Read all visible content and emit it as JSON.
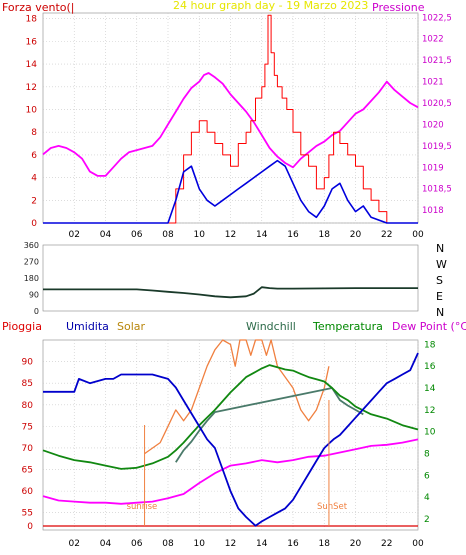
{
  "chart_data": [
    {
      "type": "line",
      "title": "24 hour graph day - 19 Marzo 2023",
      "left_label": "Forza vento(|",
      "right_label": "Pressione",
      "x_ticks": [
        "02",
        "04",
        "06",
        "08",
        "10",
        "12",
        "14",
        "16",
        "18",
        "20",
        "22",
        "00"
      ],
      "xlim": [
        0,
        24
      ],
      "y_left_ticks": [
        "0",
        "2",
        "4",
        "6",
        "8",
        "10",
        "12",
        "14",
        "16",
        "18"
      ],
      "ylim_left": [
        0,
        18.5
      ],
      "y_right_ticks": [
        "1018",
        "1018,5",
        "1019",
        "1019,5",
        "1020",
        "1020,5",
        "1021",
        "1021,5",
        "1022",
        "1022,5"
      ],
      "ylim_right": [
        1017.7,
        1022.6
      ],
      "grid": true,
      "colors": {
        "gust": "#ff0000",
        "wind": "#0000dd",
        "pressure": "#ff00ff",
        "left_axis": "#cc0000",
        "right_axis": "#cc00cc",
        "title": "#e6e600"
      },
      "series": [
        {
          "role": "pressure",
          "axis": "right",
          "x": [
            0,
            0.5,
            1,
            1.5,
            2,
            2.5,
            3,
            3.5,
            4,
            4.5,
            5,
            5.5,
            6,
            6.5,
            7,
            7.5,
            8,
            8.5,
            9,
            9.5,
            10,
            10.3,
            10.6,
            11,
            11.5,
            12,
            12.5,
            13,
            13.5,
            14,
            14.5,
            15,
            15.5,
            16,
            16.5,
            17,
            17.5,
            18,
            18.5,
            19,
            19.5,
            20,
            20.5,
            21,
            21.5,
            22,
            22.5,
            23,
            23.5,
            24
          ],
          "y": [
            1019.3,
            1019.45,
            1019.5,
            1019.45,
            1019.35,
            1019.2,
            1018.9,
            1018.8,
            1018.8,
            1019.0,
            1019.2,
            1019.35,
            1019.4,
            1019.45,
            1019.5,
            1019.7,
            1020.0,
            1020.3,
            1020.6,
            1020.85,
            1021.0,
            1021.15,
            1021.2,
            1021.1,
            1020.95,
            1020.7,
            1020.5,
            1020.3,
            1020.05,
            1019.75,
            1019.45,
            1019.25,
            1019.1,
            1019.0,
            1019.2,
            1019.35,
            1019.5,
            1019.6,
            1019.75,
            1019.85,
            1020.05,
            1020.25,
            1020.35,
            1020.55,
            1020.75,
            1021.0,
            1020.8,
            1020.65,
            1020.5,
            1020.4
          ]
        },
        {
          "role": "gust",
          "axis": "left",
          "x": [
            0,
            1,
            2,
            3,
            4,
            5,
            6,
            6.5,
            7,
            7.5,
            8,
            8.5,
            9,
            9.5,
            10,
            10.5,
            11,
            11.5,
            12,
            12.5,
            13,
            13.3,
            13.6,
            14,
            14.2,
            14.4,
            14.6,
            14.8,
            15,
            15.3,
            15.6,
            16,
            16.5,
            17,
            17.5,
            18,
            18.3,
            18.6,
            19,
            19.5,
            20,
            20.5,
            21,
            21.5,
            22,
            23,
            24
          ],
          "y": [
            0,
            0,
            0,
            0,
            0,
            0,
            0,
            0,
            0,
            0,
            0,
            3,
            6,
            8,
            9,
            8,
            7,
            6,
            5,
            7,
            8,
            9,
            11,
            12,
            14,
            18.3,
            15,
            13,
            12,
            11,
            10,
            8,
            6,
            5,
            3,
            4,
            6,
            8,
            7,
            6,
            5,
            3,
            2,
            1,
            0,
            0,
            0
          ]
        },
        {
          "role": "wind",
          "axis": "left",
          "x": [
            0,
            1,
            2,
            3,
            4,
            5,
            6,
            6.5,
            7,
            7.5,
            8,
            8.5,
            9,
            9.5,
            10,
            10.5,
            11,
            11.5,
            12,
            12.5,
            13,
            13.5,
            14,
            14.5,
            15,
            15.5,
            16,
            16.5,
            17,
            17.5,
            18,
            18.5,
            19,
            19.5,
            20,
            20.5,
            21,
            22,
            23,
            24
          ],
          "y": [
            0,
            0,
            0,
            0,
            0,
            0,
            0,
            0,
            0,
            0,
            0,
            2,
            4.5,
            5,
            3,
            2,
            1.5,
            2,
            2.5,
            3,
            3.5,
            4,
            4.5,
            5,
            5.5,
            5,
            3.5,
            2,
            1,
            0.5,
            1.5,
            3,
            3.5,
            2,
            1,
            1.5,
            0.5,
            0,
            0,
            0
          ]
        }
      ]
    },
    {
      "type": "line",
      "x_ticks": [
        "02",
        "04",
        "06",
        "08",
        "10",
        "12",
        "14",
        "16",
        "18",
        "20",
        "22",
        "00"
      ],
      "xlim": [
        0,
        24
      ],
      "y_left_ticks": [
        "0",
        "90",
        "180",
        "270",
        "360"
      ],
      "ylim": [
        0,
        360
      ],
      "y_right_ticks": [
        "N",
        "W",
        "S",
        "E",
        "N"
      ],
      "colors": {
        "direction": "#1a3a2a",
        "axis": "#222222"
      },
      "series": [
        {
          "role": "direction",
          "x": [
            0,
            2,
            4,
            6,
            7,
            8,
            9,
            10,
            11,
            12,
            13,
            13.5,
            14,
            14.5,
            15,
            16,
            18,
            20,
            22,
            24
          ],
          "y": [
            118,
            118,
            118,
            118,
            112,
            105,
            98,
            90,
            80,
            75,
            80,
            95,
            130,
            125,
            122,
            122,
            123,
            125,
            125,
            125
          ]
        }
      ]
    },
    {
      "type": "line",
      "legend": [
        "Pioggia",
        "Umidita",
        "Solar",
        "Windchill",
        "Temperatura",
        "Dew Point (°C)"
      ],
      "legend_colors": [
        "#dd0000",
        "#0000aa",
        "#b8860b",
        "#2e6b4a",
        "#008800",
        "#cc00cc"
      ],
      "x_ticks": [
        "02",
        "04",
        "06",
        "08",
        "10",
        "12",
        "14",
        "16",
        "18",
        "20",
        "22",
        "00"
      ],
      "xlim": [
        0,
        24
      ],
      "y_left_ticks": [
        "0",
        "55",
        "60",
        "65",
        "70",
        "75",
        "80",
        "85",
        "90"
      ],
      "ylim_humidity": [
        51,
        95
      ],
      "y_right_ticks": [
        "2",
        "4",
        "6",
        "8",
        "10",
        "12",
        "14",
        "16",
        "18"
      ],
      "ylim_temperature": [
        1,
        18.4
      ],
      "annotations": [
        "sunrise",
        "SunSet"
      ],
      "grid": true,
      "colors": {
        "humidity": "#0000cc",
        "temperature": "#118811",
        "dewpoint": "#ff00ff",
        "solar": "#f08040",
        "windchill": "#4a7a6a",
        "rain": "#dd0000",
        "left_axis": "#cc0000",
        "right_axis": "#008800"
      },
      "series": [
        {
          "role": "humidity",
          "axis": "left",
          "x": [
            0,
            1,
            2,
            2.3,
            3,
            4,
            4.5,
            5,
            6,
            7,
            8,
            8.5,
            9,
            9.5,
            10,
            10.5,
            11,
            11.5,
            12,
            12.5,
            13,
            13.3,
            13.6,
            14,
            14.5,
            15,
            15.5,
            16,
            16.5,
            17,
            17.5,
            18,
            18.3,
            18.6,
            19,
            19.5,
            20,
            20.5,
            21,
            21.5,
            22,
            22.5,
            23,
            23.5,
            24
          ],
          "y": [
            83,
            83,
            83,
            86,
            85,
            86,
            86,
            87,
            87,
            87,
            86,
            84,
            81,
            78,
            75,
            72,
            70,
            65,
            60,
            56,
            54,
            53,
            52,
            53,
            54,
            55,
            56,
            58,
            61,
            64,
            67,
            70,
            71,
            72,
            73,
            75,
            77,
            79,
            81,
            83,
            85,
            86,
            87,
            88,
            92
          ]
        },
        {
          "role": "temperature",
          "axis": "right",
          "x": [
            0,
            1,
            2,
            3,
            4,
            5,
            6,
            7,
            8,
            8.5,
            9,
            9.5,
            10,
            10.5,
            11,
            11.5,
            12,
            12.5,
            13,
            13.5,
            14,
            14.5,
            15,
            15.5,
            16,
            16.5,
            17,
            17.5,
            18,
            18.5,
            19,
            19.5,
            20,
            21,
            22,
            23,
            24
          ],
          "y": [
            8.3,
            7.8,
            7.4,
            7.2,
            6.9,
            6.6,
            6.7,
            7.1,
            7.7,
            8.3,
            9.0,
            9.8,
            10.6,
            11.3,
            12.0,
            12.8,
            13.6,
            14.3,
            15.0,
            15.4,
            15.8,
            16.1,
            15.9,
            15.7,
            15.6,
            15.3,
            15.0,
            14.8,
            14.6,
            14.0,
            13.3,
            12.9,
            12.3,
            11.6,
            11.2,
            10.6,
            10.2
          ]
        },
        {
          "role": "dewpoint",
          "axis": "right",
          "x": [
            0,
            1,
            2,
            3,
            4,
            5,
            6,
            7,
            8,
            9,
            10,
            11,
            12,
            13,
            14,
            15,
            16,
            17,
            18,
            19,
            20,
            21,
            22,
            23,
            24
          ],
          "y": [
            4.1,
            3.7,
            3.6,
            3.5,
            3.5,
            3.4,
            3.5,
            3.6,
            3.9,
            4.3,
            5.3,
            6.2,
            6.9,
            7.1,
            7.4,
            7.2,
            7.4,
            7.7,
            7.8,
            8.1,
            8.4,
            8.7,
            8.8,
            9.0,
            9.3
          ]
        },
        {
          "role": "solar",
          "axis": "right",
          "x": [
            6.5,
            7,
            7.5,
            8,
            8.5,
            9,
            9.5,
            10,
            10.5,
            11,
            11.5,
            12,
            12.3,
            12.6,
            13,
            13.3,
            13.6,
            14,
            14.3,
            14.6,
            15,
            15.5,
            16,
            16.5,
            17,
            17.5,
            18,
            18.3
          ],
          "y": [
            8,
            8.5,
            9,
            10.5,
            12,
            11,
            12,
            14,
            16,
            17.5,
            18.4,
            18,
            16,
            18.4,
            18.4,
            17,
            18.4,
            18.4,
            17,
            18.4,
            16,
            15,
            14,
            12,
            11,
            12,
            14,
            16
          ]
        },
        {
          "role": "windchill",
          "axis": "right",
          "x": [
            8.5,
            9,
            9.5,
            10,
            10.5,
            11,
            18.5,
            19,
            19.5,
            20,
            20.5
          ],
          "y": [
            7.2,
            8.3,
            9.1,
            10.1,
            11.0,
            11.8,
            14.0,
            12.9,
            12.4,
            12.0,
            11.6
          ]
        }
      ]
    }
  ]
}
